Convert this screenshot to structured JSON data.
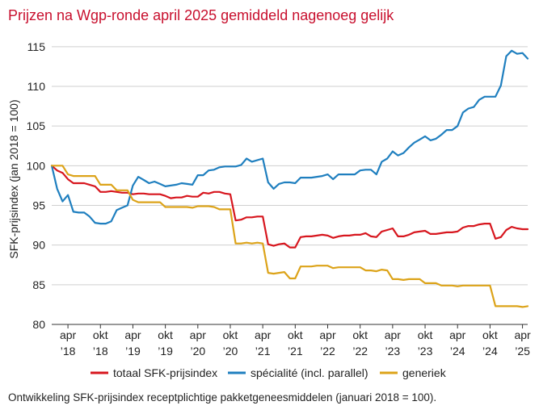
{
  "title": "Prijzen na Wgp-ronde april 2025 gemiddeld nagenoeg gelijk",
  "caption": "Ontwikkeling SFK-prijsindex receptplichtige pakketgeneesmiddelen (januari 2018 = 100).",
  "chart_data": {
    "type": "line",
    "ylabel": "SFK-prijsindex (jan 2018 = 100)",
    "ylim": [
      80,
      116
    ],
    "yticks": [
      80,
      85,
      90,
      95,
      100,
      105,
      110,
      115
    ],
    "xlim": [
      2018.0,
      2025.33
    ],
    "xticks": [
      {
        "x": 2018.25,
        "line1": "apr",
        "line2": "’18"
      },
      {
        "x": 2018.75,
        "line1": "okt",
        "line2": "’18"
      },
      {
        "x": 2019.25,
        "line1": "apr",
        "line2": "’19"
      },
      {
        "x": 2019.75,
        "line1": "okt",
        "line2": "’19"
      },
      {
        "x": 2020.25,
        "line1": "apr",
        "line2": "’20"
      },
      {
        "x": 2020.75,
        "line1": "okt",
        "line2": "’20"
      },
      {
        "x": 2021.25,
        "line1": "apr",
        "line2": "’21"
      },
      {
        "x": 2021.75,
        "line1": "okt",
        "line2": "’21"
      },
      {
        "x": 2022.25,
        "line1": "apr",
        "line2": "’22"
      },
      {
        "x": 2022.75,
        "line1": "okt",
        "line2": "’22"
      },
      {
        "x": 2023.25,
        "line1": "apr",
        "line2": "’23"
      },
      {
        "x": 2023.75,
        "line1": "okt",
        "line2": "’23"
      },
      {
        "x": 2024.25,
        "line1": "apr",
        "line2": "’24"
      },
      {
        "x": 2024.75,
        "line1": "okt",
        "line2": "’24"
      },
      {
        "x": 2025.25,
        "line1": "apr",
        "line2": "’25"
      }
    ],
    "grid": "horizontal",
    "legend_position": "bottom",
    "series": [
      {
        "name": "totaal SFK-prijsindex",
        "color": "#d7161e",
        "points": [
          [
            2018.0,
            100.0
          ],
          [
            2018.083,
            99.4
          ],
          [
            2018.167,
            99.1
          ],
          [
            2018.25,
            98.3
          ],
          [
            2018.333,
            97.8
          ],
          [
            2018.417,
            97.8
          ],
          [
            2018.5,
            97.8
          ],
          [
            2018.583,
            97.6
          ],
          [
            2018.667,
            97.4
          ],
          [
            2018.75,
            96.7
          ],
          [
            2018.833,
            96.7
          ],
          [
            2018.917,
            96.8
          ],
          [
            2019.0,
            96.7
          ],
          [
            2019.083,
            96.6
          ],
          [
            2019.167,
            96.6
          ],
          [
            2019.25,
            96.4
          ],
          [
            2019.333,
            96.5
          ],
          [
            2019.417,
            96.5
          ],
          [
            2019.5,
            96.4
          ],
          [
            2019.583,
            96.4
          ],
          [
            2019.667,
            96.4
          ],
          [
            2019.75,
            96.2
          ],
          [
            2019.833,
            95.9
          ],
          [
            2019.917,
            96.0
          ],
          [
            2020.0,
            96.0
          ],
          [
            2020.083,
            96.2
          ],
          [
            2020.167,
            96.1
          ],
          [
            2020.25,
            96.1
          ],
          [
            2020.333,
            96.6
          ],
          [
            2020.417,
            96.5
          ],
          [
            2020.5,
            96.7
          ],
          [
            2020.583,
            96.7
          ],
          [
            2020.667,
            96.5
          ],
          [
            2020.75,
            96.4
          ],
          [
            2020.833,
            93.1
          ],
          [
            2020.917,
            93.2
          ],
          [
            2021.0,
            93.5
          ],
          [
            2021.083,
            93.5
          ],
          [
            2021.167,
            93.6
          ],
          [
            2021.25,
            93.6
          ],
          [
            2021.333,
            90.1
          ],
          [
            2021.417,
            89.9
          ],
          [
            2021.5,
            90.1
          ],
          [
            2021.583,
            90.2
          ],
          [
            2021.667,
            89.7
          ],
          [
            2021.75,
            89.7
          ],
          [
            2021.833,
            91.0
          ],
          [
            2021.917,
            91.1
          ],
          [
            2022.0,
            91.1
          ],
          [
            2022.083,
            91.2
          ],
          [
            2022.167,
            91.3
          ],
          [
            2022.25,
            91.2
          ],
          [
            2022.333,
            90.9
          ],
          [
            2022.417,
            91.1
          ],
          [
            2022.5,
            91.2
          ],
          [
            2022.583,
            91.2
          ],
          [
            2022.667,
            91.3
          ],
          [
            2022.75,
            91.3
          ],
          [
            2022.833,
            91.5
          ],
          [
            2022.917,
            91.1
          ],
          [
            2023.0,
            91.0
          ],
          [
            2023.083,
            91.7
          ],
          [
            2023.167,
            91.9
          ],
          [
            2023.25,
            92.1
          ],
          [
            2023.333,
            91.1
          ],
          [
            2023.417,
            91.1
          ],
          [
            2023.5,
            91.3
          ],
          [
            2023.583,
            91.6
          ],
          [
            2023.667,
            91.7
          ],
          [
            2023.75,
            91.8
          ],
          [
            2023.833,
            91.4
          ],
          [
            2023.917,
            91.4
          ],
          [
            2024.0,
            91.5
          ],
          [
            2024.083,
            91.6
          ],
          [
            2024.167,
            91.6
          ],
          [
            2024.25,
            91.7
          ],
          [
            2024.333,
            92.2
          ],
          [
            2024.417,
            92.4
          ],
          [
            2024.5,
            92.4
          ],
          [
            2024.583,
            92.6
          ],
          [
            2024.667,
            92.7
          ],
          [
            2024.75,
            92.7
          ],
          [
            2024.833,
            90.8
          ],
          [
            2024.917,
            91.0
          ],
          [
            2025.0,
            91.9
          ],
          [
            2025.083,
            92.3
          ],
          [
            2025.167,
            92.1
          ],
          [
            2025.25,
            92.0
          ],
          [
            2025.33,
            92.0
          ]
        ]
      },
      {
        "name": "spécialité (incl. parallel)",
        "color": "#1f7fbf",
        "points": [
          [
            2018.0,
            100.0
          ],
          [
            2018.083,
            97.1
          ],
          [
            2018.167,
            95.5
          ],
          [
            2018.25,
            96.3
          ],
          [
            2018.333,
            94.2
          ],
          [
            2018.417,
            94.1
          ],
          [
            2018.5,
            94.1
          ],
          [
            2018.583,
            93.6
          ],
          [
            2018.667,
            92.8
          ],
          [
            2018.75,
            92.7
          ],
          [
            2018.833,
            92.7
          ],
          [
            2018.917,
            93.0
          ],
          [
            2019.0,
            94.4
          ],
          [
            2019.083,
            94.7
          ],
          [
            2019.167,
            95.0
          ],
          [
            2019.25,
            97.5
          ],
          [
            2019.333,
            98.6
          ],
          [
            2019.417,
            98.2
          ],
          [
            2019.5,
            97.8
          ],
          [
            2019.583,
            98.0
          ],
          [
            2019.667,
            97.7
          ],
          [
            2019.75,
            97.4
          ],
          [
            2019.833,
            97.5
          ],
          [
            2019.917,
            97.6
          ],
          [
            2020.0,
            97.8
          ],
          [
            2020.083,
            97.7
          ],
          [
            2020.167,
            97.6
          ],
          [
            2020.25,
            98.8
          ],
          [
            2020.333,
            98.8
          ],
          [
            2020.417,
            99.4
          ],
          [
            2020.5,
            99.5
          ],
          [
            2020.583,
            99.8
          ],
          [
            2020.667,
            99.9
          ],
          [
            2020.75,
            99.9
          ],
          [
            2020.833,
            99.9
          ],
          [
            2020.917,
            100.1
          ],
          [
            2021.0,
            100.9
          ],
          [
            2021.083,
            100.5
          ],
          [
            2021.167,
            100.7
          ],
          [
            2021.25,
            100.9
          ],
          [
            2021.333,
            97.9
          ],
          [
            2021.417,
            97.1
          ],
          [
            2021.5,
            97.7
          ],
          [
            2021.583,
            97.9
          ],
          [
            2021.667,
            97.9
          ],
          [
            2021.75,
            97.8
          ],
          [
            2021.833,
            98.5
          ],
          [
            2021.917,
            98.5
          ],
          [
            2022.0,
            98.5
          ],
          [
            2022.083,
            98.6
          ],
          [
            2022.167,
            98.7
          ],
          [
            2022.25,
            98.9
          ],
          [
            2022.333,
            98.3
          ],
          [
            2022.417,
            98.9
          ],
          [
            2022.5,
            98.9
          ],
          [
            2022.583,
            98.9
          ],
          [
            2022.667,
            98.9
          ],
          [
            2022.75,
            99.4
          ],
          [
            2022.833,
            99.5
          ],
          [
            2022.917,
            99.5
          ],
          [
            2023.0,
            98.9
          ],
          [
            2023.083,
            100.5
          ],
          [
            2023.167,
            100.9
          ],
          [
            2023.25,
            101.8
          ],
          [
            2023.333,
            101.3
          ],
          [
            2023.417,
            101.6
          ],
          [
            2023.5,
            102.3
          ],
          [
            2023.583,
            102.9
          ],
          [
            2023.667,
            103.3
          ],
          [
            2023.75,
            103.7
          ],
          [
            2023.833,
            103.2
          ],
          [
            2023.917,
            103.4
          ],
          [
            2024.0,
            103.9
          ],
          [
            2024.083,
            104.5
          ],
          [
            2024.167,
            104.5
          ],
          [
            2024.25,
            105.0
          ],
          [
            2024.333,
            106.7
          ],
          [
            2024.417,
            107.2
          ],
          [
            2024.5,
            107.4
          ],
          [
            2024.583,
            108.3
          ],
          [
            2024.667,
            108.7
          ],
          [
            2024.75,
            108.7
          ],
          [
            2024.833,
            108.7
          ],
          [
            2024.917,
            110.1
          ],
          [
            2025.0,
            113.8
          ],
          [
            2025.083,
            114.5
          ],
          [
            2025.167,
            114.1
          ],
          [
            2025.25,
            114.2
          ],
          [
            2025.33,
            113.5
          ]
        ]
      },
      {
        "name": "generiek",
        "color": "#dca319",
        "points": [
          [
            2018.0,
            100.0
          ],
          [
            2018.083,
            100.0
          ],
          [
            2018.167,
            100.0
          ],
          [
            2018.25,
            98.9
          ],
          [
            2018.333,
            98.7
          ],
          [
            2018.417,
            98.7
          ],
          [
            2018.5,
            98.7
          ],
          [
            2018.583,
            98.7
          ],
          [
            2018.667,
            98.7
          ],
          [
            2018.75,
            97.6
          ],
          [
            2018.833,
            97.6
          ],
          [
            2018.917,
            97.6
          ],
          [
            2019.0,
            96.9
          ],
          [
            2019.083,
            96.9
          ],
          [
            2019.167,
            96.9
          ],
          [
            2019.25,
            95.7
          ],
          [
            2019.333,
            95.4
          ],
          [
            2019.417,
            95.4
          ],
          [
            2019.5,
            95.4
          ],
          [
            2019.583,
            95.4
          ],
          [
            2019.667,
            95.4
          ],
          [
            2019.75,
            94.8
          ],
          [
            2019.833,
            94.8
          ],
          [
            2019.917,
            94.8
          ],
          [
            2020.0,
            94.8
          ],
          [
            2020.083,
            94.8
          ],
          [
            2020.167,
            94.7
          ],
          [
            2020.25,
            94.9
          ],
          [
            2020.333,
            94.9
          ],
          [
            2020.417,
            94.9
          ],
          [
            2020.5,
            94.8
          ],
          [
            2020.583,
            94.5
          ],
          [
            2020.667,
            94.5
          ],
          [
            2020.75,
            94.5
          ],
          [
            2020.833,
            90.2
          ],
          [
            2020.917,
            90.2
          ],
          [
            2021.0,
            90.3
          ],
          [
            2021.083,
            90.2
          ],
          [
            2021.167,
            90.3
          ],
          [
            2021.25,
            90.2
          ],
          [
            2021.333,
            86.5
          ],
          [
            2021.417,
            86.4
          ],
          [
            2021.5,
            86.5
          ],
          [
            2021.583,
            86.6
          ],
          [
            2021.667,
            85.8
          ],
          [
            2021.75,
            85.8
          ],
          [
            2021.833,
            87.3
          ],
          [
            2021.917,
            87.3
          ],
          [
            2022.0,
            87.3
          ],
          [
            2022.083,
            87.4
          ],
          [
            2022.167,
            87.4
          ],
          [
            2022.25,
            87.4
          ],
          [
            2022.333,
            87.1
          ],
          [
            2022.417,
            87.2
          ],
          [
            2022.5,
            87.2
          ],
          [
            2022.583,
            87.2
          ],
          [
            2022.667,
            87.2
          ],
          [
            2022.75,
            87.2
          ],
          [
            2022.833,
            86.8
          ],
          [
            2022.917,
            86.8
          ],
          [
            2023.0,
            86.7
          ],
          [
            2023.083,
            86.9
          ],
          [
            2023.167,
            86.8
          ],
          [
            2023.25,
            85.7
          ],
          [
            2023.333,
            85.7
          ],
          [
            2023.417,
            85.6
          ],
          [
            2023.5,
            85.7
          ],
          [
            2023.583,
            85.7
          ],
          [
            2023.667,
            85.7
          ],
          [
            2023.75,
            85.2
          ],
          [
            2023.833,
            85.2
          ],
          [
            2023.917,
            85.2
          ],
          [
            2024.0,
            84.9
          ],
          [
            2024.083,
            84.9
          ],
          [
            2024.167,
            84.9
          ],
          [
            2024.25,
            84.8
          ],
          [
            2024.333,
            84.9
          ],
          [
            2024.417,
            84.9
          ],
          [
            2024.5,
            84.9
          ],
          [
            2024.583,
            84.9
          ],
          [
            2024.667,
            84.9
          ],
          [
            2024.75,
            84.9
          ],
          [
            2024.833,
            82.3
          ],
          [
            2024.917,
            82.3
          ],
          [
            2025.0,
            82.3
          ],
          [
            2025.083,
            82.3
          ],
          [
            2025.167,
            82.3
          ],
          [
            2025.25,
            82.2
          ],
          [
            2025.33,
            82.3
          ]
        ]
      }
    ]
  }
}
